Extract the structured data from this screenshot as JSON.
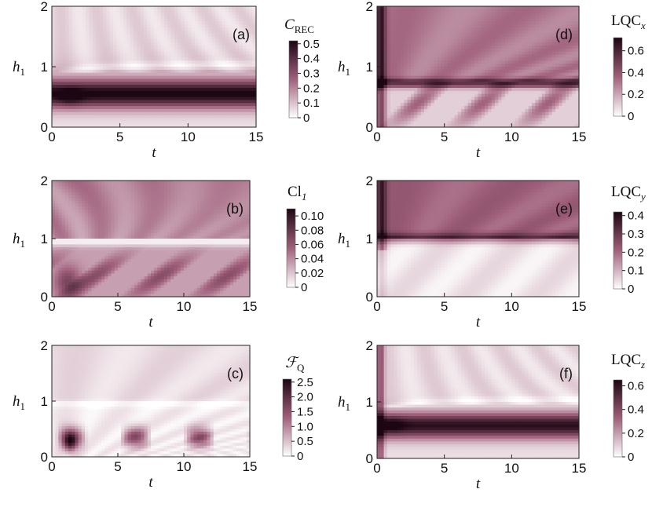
{
  "chart_data": [
    {
      "type": "heatmap",
      "panel": "(a)",
      "colorbar_title_main": "C",
      "colorbar_title_sub": "REC",
      "colorbar_title_style": "italic",
      "colorbar_ticks": [
        "0",
        "0.1",
        "0.2",
        "0.3",
        "0.4",
        "0.5"
      ],
      "colorbar_range": [
        0,
        0.52
      ],
      "xlabel": "t",
      "ylabel_main": "h",
      "ylabel_sub": "1",
      "xlim": [
        0,
        15
      ],
      "ylim": [
        0,
        2
      ],
      "xticks": [
        "0",
        "5",
        "10",
        "15"
      ],
      "yticks": [
        "0",
        "1",
        "2"
      ],
      "pattern": "dense band for h1 between about 0.3 and 0.85, peak near t=1.5, h1=0.5; faint white ridge near h1=1 at early t"
    },
    {
      "type": "heatmap",
      "panel": "(b)",
      "colorbar_title_main": "Cl",
      "colorbar_title_sub": "1",
      "colorbar_title_style": "mixed",
      "colorbar_ticks": [
        "0",
        "0.02",
        "0.04",
        "0.06",
        "0.08",
        "0.10"
      ],
      "colorbar_range": [
        0,
        0.11
      ],
      "xlabel": "t",
      "ylabel_main": "h",
      "ylabel_sub": "1",
      "xlim": [
        0,
        15
      ],
      "ylim": [
        0,
        2
      ],
      "xticks": [
        "0",
        "5",
        "10",
        "15"
      ],
      "yticks": [
        "0",
        "1",
        "2"
      ],
      "pattern": "moderate values for h1>1, white ridge at h1=1, diagonal oscillating streaks below h1=0.7"
    },
    {
      "type": "heatmap",
      "panel": "(c)",
      "colorbar_title_main": "ℱ",
      "colorbar_title_sub": "Q",
      "colorbar_title_style": "italic",
      "colorbar_ticks": [
        "0",
        "0.5",
        "1.0",
        "1.5",
        "2.0",
        "2.5"
      ],
      "colorbar_range": [
        0,
        2.6
      ],
      "xlabel": "t",
      "ylabel_main": "h",
      "ylabel_sub": "1",
      "xlim": [
        0,
        15
      ],
      "ylim": [
        0,
        2
      ],
      "xticks": [
        "0",
        "5",
        "10",
        "15"
      ],
      "yticks": [
        "0",
        "1",
        "2"
      ],
      "pattern": "mostly light; dark oscillating blobs at h1 ~0.2-0.6, strongest near t=1.5"
    },
    {
      "type": "heatmap",
      "panel": "(d)",
      "colorbar_title_main": "LQC",
      "colorbar_title_sub": "x",
      "colorbar_title_style": "mixed",
      "colorbar_ticks": [
        "0",
        "0.2",
        "0.4",
        "0.6"
      ],
      "colorbar_range": [
        0,
        0.72
      ],
      "xlabel": "t",
      "ylabel_main": "h",
      "ylabel_sub": "1",
      "xlim": [
        0,
        15
      ],
      "ylim": [
        0,
        2
      ],
      "xticks": [
        "0",
        "5",
        "10",
        "15"
      ],
      "yticks": [
        "0",
        "1",
        "2"
      ],
      "pattern": "medium values above h1=0.7, darkest line near h1=0.7, light streaked region below"
    },
    {
      "type": "heatmap",
      "panel": "(e)",
      "colorbar_title_main": "LQC",
      "colorbar_title_sub": "y",
      "colorbar_title_style": "mixed",
      "colorbar_ticks": [
        "0",
        "0.1",
        "0.2",
        "0.3",
        "0.4"
      ],
      "colorbar_range": [
        0,
        0.42
      ],
      "xlabel": "t",
      "ylabel_main": "h",
      "ylabel_sub": "1",
      "xlim": [
        0,
        15
      ],
      "ylim": [
        0,
        2
      ],
      "xticks": [
        "0",
        "5",
        "10",
        "15"
      ],
      "yticks": [
        "0",
        "1",
        "2"
      ],
      "pattern": "medium for h1>1, dark line near h1=1, very light below h1=0.8"
    },
    {
      "type": "heatmap",
      "panel": "(f)",
      "colorbar_title_main": "LQC",
      "colorbar_title_sub": "z",
      "colorbar_title_style": "mixed",
      "colorbar_ticks": [
        "0",
        "0.2",
        "0.4",
        "0.6"
      ],
      "colorbar_range": [
        0,
        0.65
      ],
      "xlabel": "t",
      "ylabel_main": "h",
      "ylabel_sub": "1",
      "xlim": [
        0,
        15
      ],
      "ylim": [
        0,
        2
      ],
      "xticks": [
        "0",
        "5",
        "10",
        "15"
      ],
      "yticks": [
        "0",
        "1",
        "2"
      ],
      "pattern": "dark band for h1 between about 0.3 and 0.85, light above with white ridge near h1=1"
    }
  ],
  "colormap": {
    "low": "#ffffff",
    "mid": "#a0607c",
    "high": "#1d0613"
  }
}
